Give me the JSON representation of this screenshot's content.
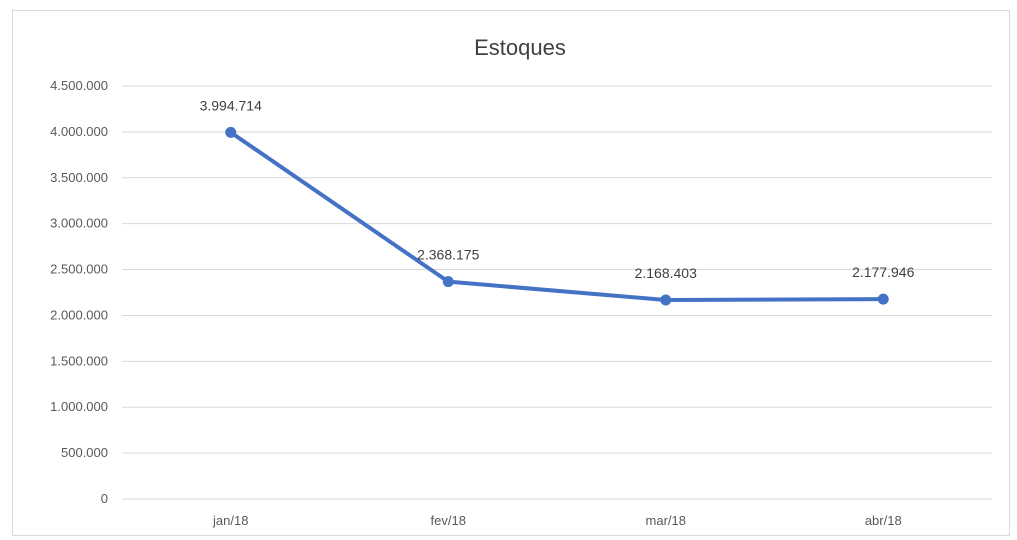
{
  "chart_data": {
    "type": "line",
    "title": "Estoques",
    "xlabel": "",
    "ylabel": "",
    "categories": [
      "jan/18",
      "fev/18",
      "mar/18",
      "abr/18"
    ],
    "series": [
      {
        "values": [
          3994714,
          2368175,
          2168403,
          2177946
        ],
        "data_labels": [
          "3.994.714",
          "2.368.175",
          "2.168.403",
          "2.177.946"
        ],
        "color": "#4472c4"
      }
    ],
    "ylim": [
      0,
      4500000
    ],
    "yticks": [
      0,
      500000,
      1000000,
      1500000,
      2000000,
      2500000,
      3000000,
      3500000,
      4000000,
      4500000
    ],
    "ytick_labels": [
      "0",
      "500.000",
      "1.000.000",
      "1.500.000",
      "2.000.000",
      "2.500.000",
      "3.000.000",
      "3.500.000",
      "4.000.000",
      "4.500.000"
    ],
    "grid": true,
    "legend": "none"
  }
}
